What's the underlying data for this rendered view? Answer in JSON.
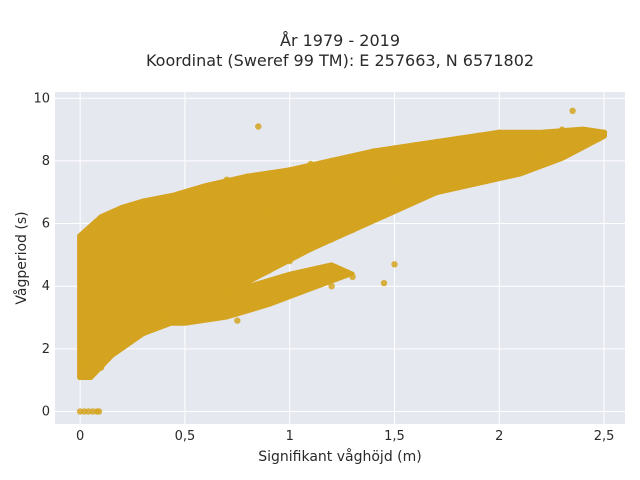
{
  "chart_data": {
    "type": "scatter",
    "title_line1": "År 1979 - 2019",
    "title_line2": "Koordinat (Sweref 99 TM): E 257663, N 6571802",
    "xlabel": "Signifikant våghöjd (m)",
    "ylabel": "Vågperiod (s)",
    "xlim": [
      -0.12,
      2.6
    ],
    "ylim": [
      -0.4,
      10.2
    ],
    "xticks": [
      0,
      0.5,
      1,
      1.5,
      2,
      2.5
    ],
    "xtick_labels": [
      "0",
      "0,5",
      "1",
      "1,5",
      "2",
      "2,5"
    ],
    "yticks": [
      0,
      2,
      4,
      6,
      8,
      10
    ],
    "ytick_labels": [
      "0",
      "2",
      "4",
      "6",
      "8",
      "10"
    ],
    "grid": true,
    "marker_color": "#d4a420",
    "background_color": "#e6e8f0",
    "gridline_color": "#ffffff",
    "series": [
      {
        "values": [
          [
            0.0,
            0.0
          ],
          [
            0.02,
            0.0
          ],
          [
            0.04,
            0.0
          ],
          [
            0.06,
            0.0
          ],
          [
            0.08,
            0.0
          ],
          [
            0.09,
            0.0
          ],
          [
            0.0,
            1.1
          ],
          [
            0.02,
            1.5
          ],
          [
            0.03,
            2.2
          ],
          [
            0.05,
            3.0
          ],
          [
            0.01,
            3.8
          ],
          [
            0.04,
            4.5
          ],
          [
            0.03,
            5.0
          ],
          [
            0.06,
            5.5
          ],
          [
            0.08,
            6.0
          ],
          [
            0.1,
            1.4
          ],
          [
            0.12,
            2.0
          ],
          [
            0.15,
            3.5
          ],
          [
            0.2,
            2.2
          ],
          [
            0.2,
            4.5
          ],
          [
            0.2,
            6.3
          ],
          [
            0.3,
            2.5
          ],
          [
            0.3,
            4.0
          ],
          [
            0.3,
            6.6
          ],
          [
            0.4,
            3.0
          ],
          [
            0.4,
            5.2
          ],
          [
            0.4,
            6.8
          ],
          [
            0.5,
            3.0
          ],
          [
            0.5,
            5.0
          ],
          [
            0.5,
            6.9
          ],
          [
            0.6,
            3.5
          ],
          [
            0.6,
            5.5
          ],
          [
            0.6,
            7.1
          ],
          [
            0.7,
            3.8
          ],
          [
            0.7,
            6.0
          ],
          [
            0.7,
            7.4
          ],
          [
            0.8,
            4.2
          ],
          [
            0.8,
            6.2
          ],
          [
            0.8,
            7.5
          ],
          [
            0.9,
            4.5
          ],
          [
            0.9,
            6.4
          ],
          [
            0.9,
            7.6
          ],
          [
            1.0,
            4.8
          ],
          [
            1.0,
            6.6
          ],
          [
            1.0,
            7.7
          ],
          [
            1.1,
            5.2
          ],
          [
            1.1,
            6.8
          ],
          [
            1.1,
            7.9
          ],
          [
            1.2,
            5.5
          ],
          [
            1.2,
            7.0
          ],
          [
            1.2,
            8.0
          ],
          [
            1.3,
            5.8
          ],
          [
            1.3,
            7.1
          ],
          [
            1.3,
            8.1
          ],
          [
            1.4,
            6.2
          ],
          [
            1.4,
            7.3
          ],
          [
            1.4,
            8.3
          ],
          [
            1.5,
            6.5
          ],
          [
            1.5,
            7.4
          ],
          [
            1.5,
            8.4
          ],
          [
            1.6,
            6.8
          ],
          [
            1.6,
            7.6
          ],
          [
            1.6,
            8.5
          ],
          [
            1.7,
            7.0
          ],
          [
            1.7,
            7.8
          ],
          [
            1.7,
            8.6
          ],
          [
            1.8,
            7.3
          ],
          [
            1.8,
            7.9
          ],
          [
            1.8,
            8.7
          ],
          [
            1.9,
            7.6
          ],
          [
            1.9,
            8.1
          ],
          [
            1.9,
            8.8
          ],
          [
            2.0,
            7.8
          ],
          [
            2.0,
            8.3
          ],
          [
            2.0,
            8.9
          ],
          [
            2.1,
            8.0
          ],
          [
            2.1,
            8.7
          ],
          [
            2.2,
            8.2
          ],
          [
            2.2,
            8.8
          ],
          [
            2.3,
            8.5
          ],
          [
            2.3,
            9.0
          ],
          [
            2.35,
            9.6
          ],
          [
            2.4,
            8.8
          ],
          [
            2.45,
            8.8
          ],
          [
            2.5,
            8.9
          ],
          [
            0.85,
            9.1
          ],
          [
            1.5,
            4.7
          ],
          [
            1.45,
            4.1
          ],
          [
            1.3,
            4.3
          ],
          [
            1.2,
            4.0
          ],
          [
            1.0,
            3.8
          ],
          [
            0.75,
            2.9
          ]
        ]
      }
    ]
  }
}
